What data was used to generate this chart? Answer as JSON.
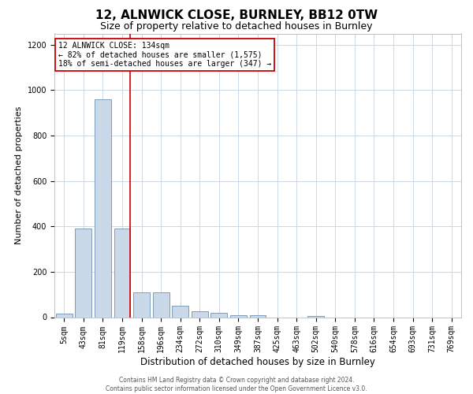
{
  "title1": "12, ALNWICK CLOSE, BURNLEY, BB12 0TW",
  "title2": "Size of property relative to detached houses in Burnley",
  "xlabel": "Distribution of detached houses by size in Burnley",
  "ylabel": "Number of detached properties",
  "categories": [
    "5sqm",
    "43sqm",
    "81sqm",
    "119sqm",
    "158sqm",
    "196sqm",
    "234sqm",
    "272sqm",
    "310sqm",
    "349sqm",
    "387sqm",
    "425sqm",
    "463sqm",
    "502sqm",
    "540sqm",
    "578sqm",
    "616sqm",
    "654sqm",
    "693sqm",
    "731sqm",
    "769sqm"
  ],
  "values": [
    15,
    390,
    960,
    390,
    110,
    110,
    50,
    25,
    20,
    10,
    10,
    0,
    0,
    5,
    0,
    0,
    0,
    0,
    0,
    0,
    0
  ],
  "bar_color": "#c9d9ea",
  "bar_edge_color": "#7090b0",
  "vline_color": "#cc0000",
  "vline_index": 3,
  "ylim": [
    0,
    1250
  ],
  "yticks": [
    0,
    200,
    400,
    600,
    800,
    1000,
    1200
  ],
  "annotation_text": "12 ALNWICK CLOSE: 134sqm\n← 82% of detached houses are smaller (1,575)\n18% of semi-detached houses are larger (347) →",
  "annotation_box_color": "#ffffff",
  "annotation_box_edge": "#cc0000",
  "footer1": "Contains HM Land Registry data © Crown copyright and database right 2024.",
  "footer2": "Contains public sector information licensed under the Open Government Licence v3.0.",
  "bg_color": "#ffffff",
  "grid_color": "#ccd8e4",
  "title1_fontsize": 11,
  "title2_fontsize": 9,
  "ylabel_fontsize": 8,
  "xlabel_fontsize": 8.5,
  "tick_fontsize": 7,
  "annot_fontsize": 7,
  "footer_fontsize": 5.5
}
